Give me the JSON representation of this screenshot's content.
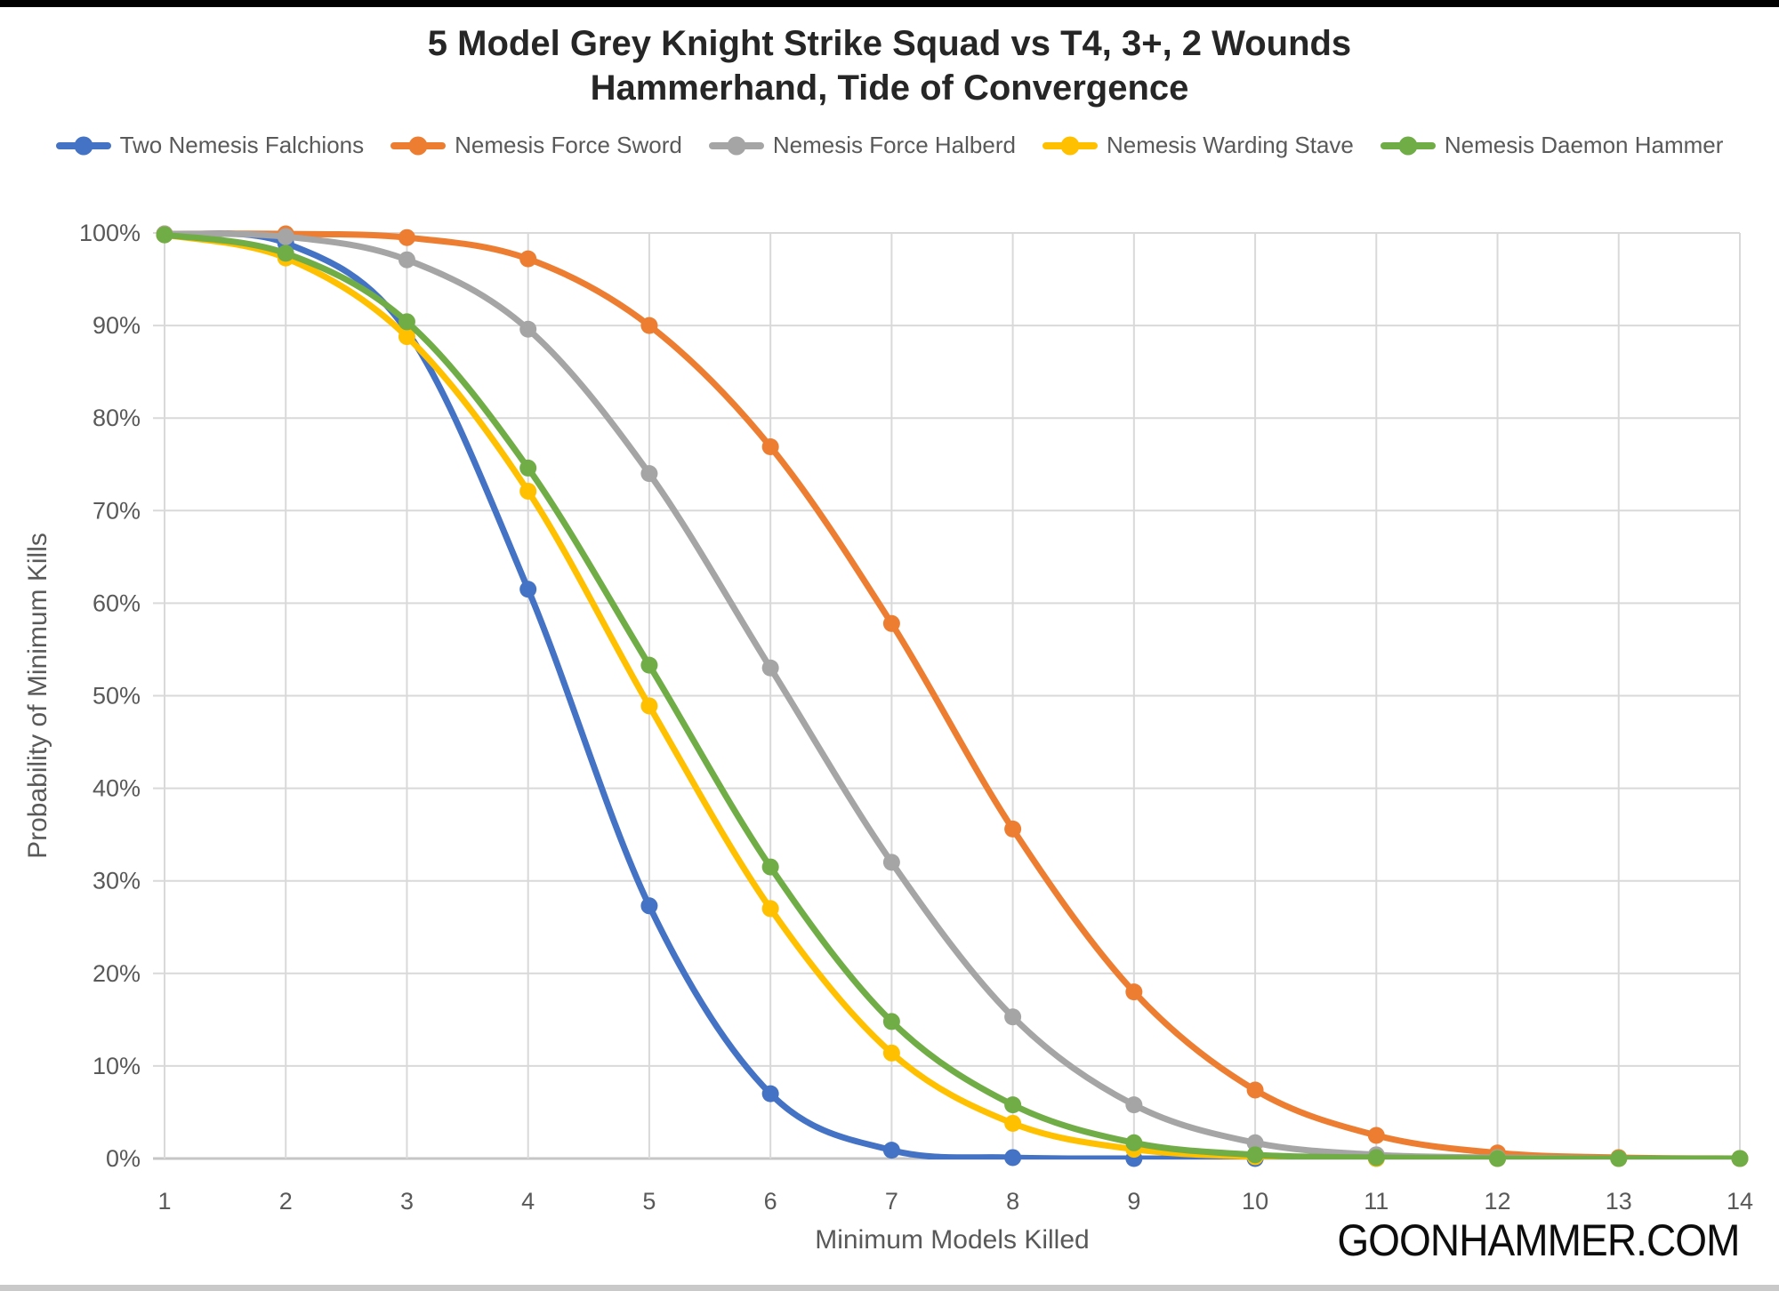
{
  "watermark": {
    "text": "GOONHAMMER.COM"
  },
  "colors": {
    "grid": "#D9D9D9",
    "axis_line": "#C6C6C6",
    "tick_text": "#595959",
    "title_text": "#262626",
    "top_bar": "#000000",
    "bottom_bar": "#C9C9C9"
  },
  "chart_data": {
    "type": "line",
    "title": "5 Model Grey Knight Strike Squad vs T4, 3+, 2 Wounds",
    "subtitle": "Hammerhand, Tide of Convergence",
    "xlabel": "Minimum Models Killed",
    "ylabel": "Probability of Minimum Kills",
    "legend_position": "top",
    "grid": true,
    "line_style": "smooth",
    "marker": "circle",
    "x": [
      1,
      2,
      3,
      4,
      5,
      6,
      7,
      8,
      9,
      10,
      11,
      12,
      13,
      14
    ],
    "ylim": [
      0,
      100
    ],
    "ytick_step": 10,
    "ytick_suffix": "%",
    "series": [
      {
        "name": "Two Nemesis Falchions",
        "color": "#4472C4",
        "values": [
          99.8,
          98.9,
          89.4,
          61.5,
          27.3,
          7.0,
          0.9,
          0.1,
          0,
          0,
          0,
          0,
          0,
          0
        ]
      },
      {
        "name": "Nemesis Force Sword",
        "color": "#ED7D31",
        "values": [
          99.9,
          99.9,
          99.5,
          97.2,
          90.0,
          76.9,
          57.8,
          35.6,
          18.0,
          7.4,
          2.5,
          0.6,
          0.1,
          0
        ]
      },
      {
        "name": "Nemesis Force Halberd",
        "color": "#A5A5A5",
        "values": [
          99.9,
          99.6,
          97.1,
          89.6,
          74.0,
          53.0,
          32.0,
          15.3,
          5.8,
          1.7,
          0.4,
          0.1,
          0,
          0
        ]
      },
      {
        "name": "Nemesis Warding Stave",
        "color": "#FFC000",
        "values": [
          99.8,
          97.3,
          88.8,
          72.1,
          48.9,
          27.0,
          11.4,
          3.8,
          1.0,
          0.2,
          0,
          0,
          0,
          0
        ]
      },
      {
        "name": "Nemesis Daemon Hammer",
        "color": "#70AD47",
        "values": [
          99.8,
          97.8,
          90.4,
          74.6,
          53.3,
          31.5,
          14.8,
          5.8,
          1.7,
          0.4,
          0.1,
          0,
          0,
          0
        ]
      }
    ]
  }
}
